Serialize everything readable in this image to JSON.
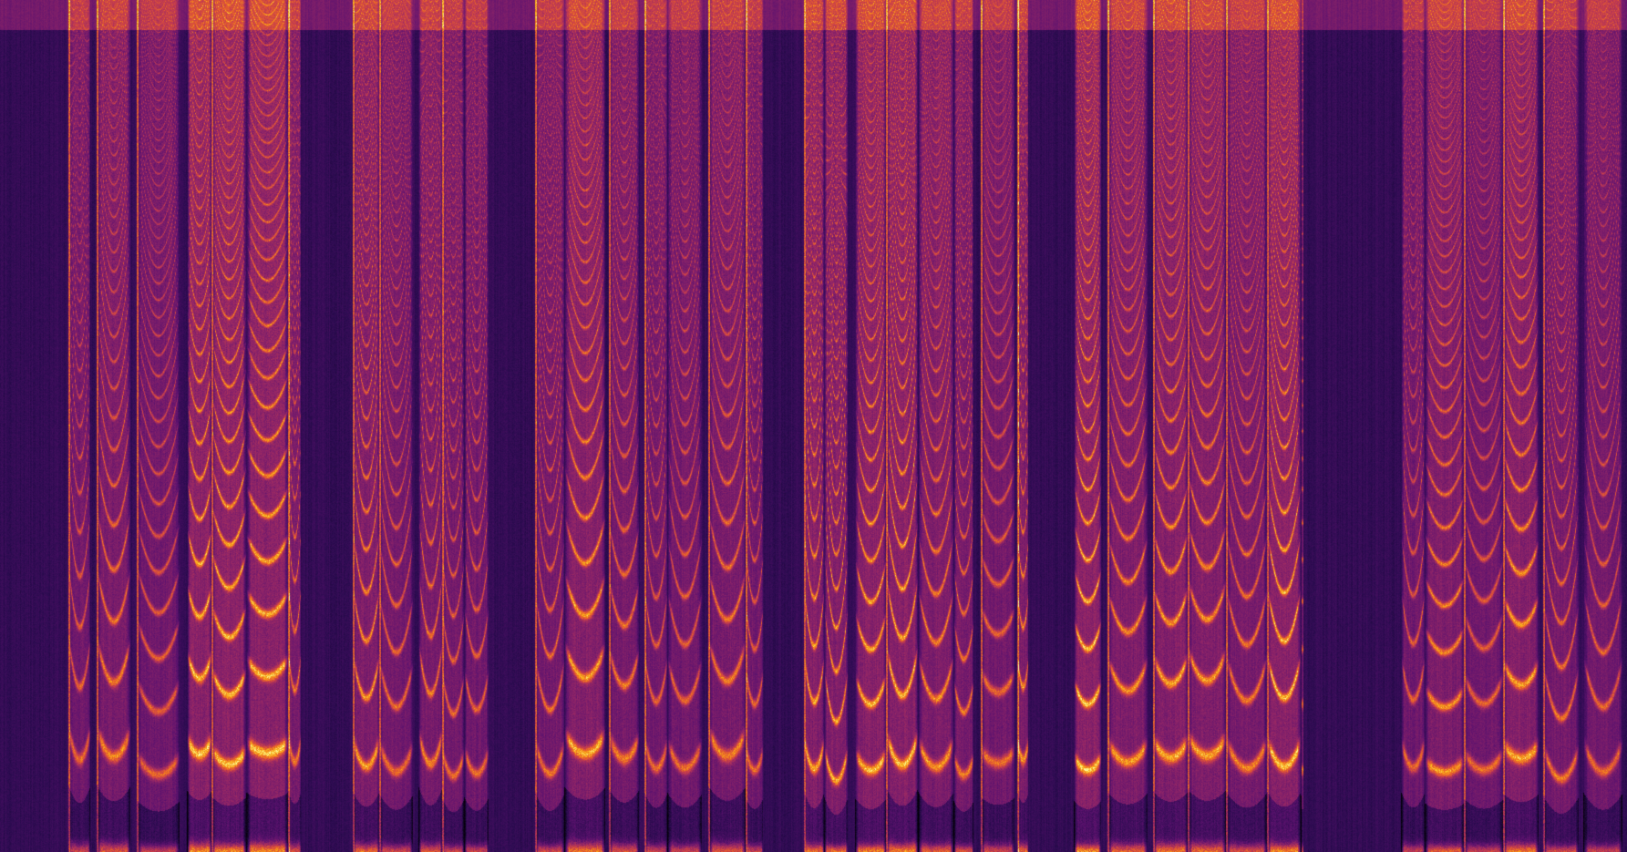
{
  "image": {
    "kind": "spectrogram",
    "colormap": [
      "#000004",
      "#2a0b4f",
      "#5c126e",
      "#932667",
      "#c73e4c",
      "#ed6925",
      "#fbb61a",
      "#fcffa4"
    ]
  }
}
